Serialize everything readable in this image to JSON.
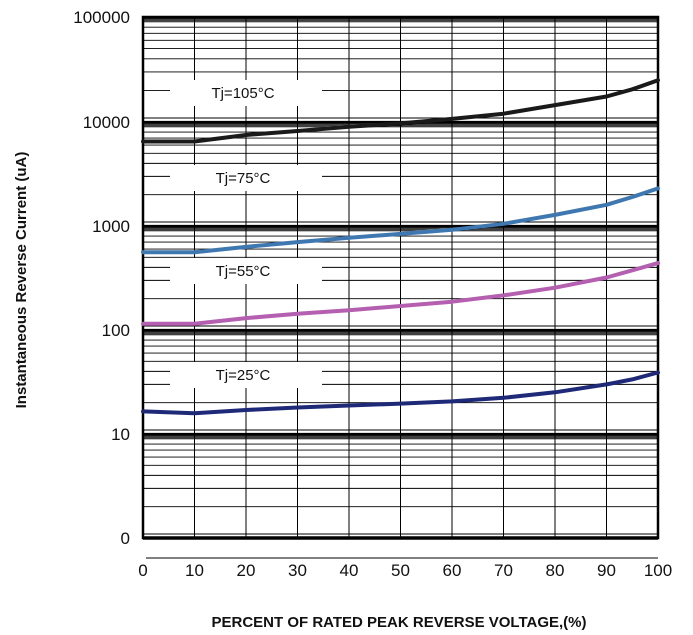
{
  "chart_data": {
    "type": "line",
    "xlabel": "PERCENT OF RATED PEAK REVERSE VOLTAGE,(%)",
    "ylabel": "Instantaneous Reverse Current (uA)",
    "x_ticks": [
      "0",
      "10",
      "20",
      "30",
      "40",
      "50",
      "60",
      "70",
      "80",
      "90",
      "100"
    ],
    "y_ticks": [
      "0",
      "10",
      "100",
      "1000",
      "10000",
      "100000"
    ],
    "y_scale": "log",
    "xlim": [
      0,
      100
    ],
    "grid": true,
    "series": [
      {
        "name": "Tj=105°C",
        "color": "#1a1a1a",
        "x": [
          0,
          10,
          20,
          30,
          40,
          50,
          60,
          70,
          80,
          90,
          95,
          100
        ],
        "y": [
          6500,
          6500,
          7500,
          8200,
          9000,
          9700,
          10700,
          12000,
          14500,
          17500,
          20500,
          25000
        ]
      },
      {
        "name": "Tj=75°C",
        "color": "#3f78b0",
        "x": [
          0,
          10,
          20,
          30,
          40,
          50,
          60,
          70,
          80,
          90,
          95,
          100
        ],
        "y": [
          560,
          560,
          630,
          700,
          770,
          840,
          920,
          1050,
          1280,
          1600,
          1900,
          2300
        ]
      },
      {
        "name": "Tj=55°C",
        "color": "#b45fb0",
        "x": [
          0,
          10,
          20,
          30,
          40,
          50,
          60,
          70,
          80,
          90,
          95,
          100
        ],
        "y": [
          115,
          115,
          130,
          143,
          155,
          170,
          187,
          215,
          255,
          320,
          375,
          440
        ]
      },
      {
        "name": "Tj=25°C",
        "color": "#1e2a78",
        "x": [
          0,
          10,
          20,
          30,
          40,
          50,
          60,
          70,
          80,
          90,
          95,
          100
        ],
        "y": [
          16.5,
          15.8,
          17,
          18,
          18.8,
          19.6,
          20.6,
          22.3,
          25.2,
          30,
          33.5,
          39
        ]
      }
    ]
  }
}
